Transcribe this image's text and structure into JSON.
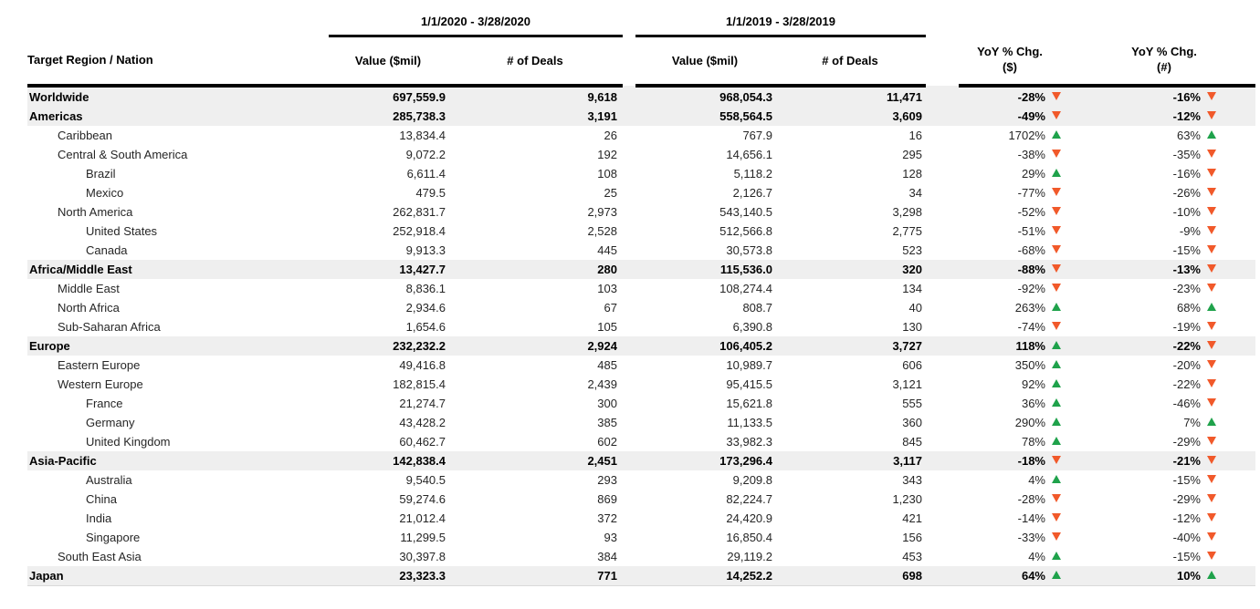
{
  "chart_data": {
    "type": "table",
    "region_header": "Target Region / Nation",
    "period_groups": [
      {
        "label": "1/1/2020 - 3/28/2020",
        "columns": [
          "Value ($mil)",
          "# of Deals"
        ]
      },
      {
        "label": "1/1/2019 - 3/28/2019",
        "columns": [
          "Value ($mil)",
          "# of Deals"
        ]
      }
    ],
    "yoy_headers": [
      {
        "line1": "YoY % Chg.",
        "line2": "($)"
      },
      {
        "line1": "YoY % Chg.",
        "line2": "(#)"
      }
    ],
    "rows": [
      {
        "region": "Worldwide",
        "indent": 0,
        "bold": true,
        "v2020": "697,559.9",
        "d2020": "9,618",
        "v2019": "968,054.3",
        "d2019": "11,471",
        "yoy_value": "-28%",
        "yoy_value_dir": "down",
        "yoy_deals": "-16%",
        "yoy_deals_dir": "down"
      },
      {
        "region": "Americas",
        "indent": 0,
        "bold": true,
        "v2020": "285,738.3",
        "d2020": "3,191",
        "v2019": "558,564.5",
        "d2019": "3,609",
        "yoy_value": "-49%",
        "yoy_value_dir": "down",
        "yoy_deals": "-12%",
        "yoy_deals_dir": "down"
      },
      {
        "region": "Caribbean",
        "indent": 1,
        "bold": false,
        "v2020": "13,834.4",
        "d2020": "26",
        "v2019": "767.9",
        "d2019": "16",
        "yoy_value": "1702%",
        "yoy_value_dir": "up",
        "yoy_deals": "63%",
        "yoy_deals_dir": "up"
      },
      {
        "region": "Central & South America",
        "indent": 1,
        "bold": false,
        "v2020": "9,072.2",
        "d2020": "192",
        "v2019": "14,656.1",
        "d2019": "295",
        "yoy_value": "-38%",
        "yoy_value_dir": "down",
        "yoy_deals": "-35%",
        "yoy_deals_dir": "down"
      },
      {
        "region": "Brazil",
        "indent": 2,
        "bold": false,
        "v2020": "6,611.4",
        "d2020": "108",
        "v2019": "5,118.2",
        "d2019": "128",
        "yoy_value": "29%",
        "yoy_value_dir": "up",
        "yoy_deals": "-16%",
        "yoy_deals_dir": "down"
      },
      {
        "region": "Mexico",
        "indent": 2,
        "bold": false,
        "v2020": "479.5",
        "d2020": "25",
        "v2019": "2,126.7",
        "d2019": "34",
        "yoy_value": "-77%",
        "yoy_value_dir": "down",
        "yoy_deals": "-26%",
        "yoy_deals_dir": "down"
      },
      {
        "region": "North America",
        "indent": 1,
        "bold": false,
        "v2020": "262,831.7",
        "d2020": "2,973",
        "v2019": "543,140.5",
        "d2019": "3,298",
        "yoy_value": "-52%",
        "yoy_value_dir": "down",
        "yoy_deals": "-10%",
        "yoy_deals_dir": "down"
      },
      {
        "region": "United States",
        "indent": 2,
        "bold": false,
        "v2020": "252,918.4",
        "d2020": "2,528",
        "v2019": "512,566.8",
        "d2019": "2,775",
        "yoy_value": "-51%",
        "yoy_value_dir": "down",
        "yoy_deals": "-9%",
        "yoy_deals_dir": "down"
      },
      {
        "region": "Canada",
        "indent": 2,
        "bold": false,
        "v2020": "9,913.3",
        "d2020": "445",
        "v2019": "30,573.8",
        "d2019": "523",
        "yoy_value": "-68%",
        "yoy_value_dir": "down",
        "yoy_deals": "-15%",
        "yoy_deals_dir": "down"
      },
      {
        "region": "Africa/Middle East",
        "indent": 0,
        "bold": true,
        "v2020": "13,427.7",
        "d2020": "280",
        "v2019": "115,536.0",
        "d2019": "320",
        "yoy_value": "-88%",
        "yoy_value_dir": "down",
        "yoy_deals": "-13%",
        "yoy_deals_dir": "down"
      },
      {
        "region": "Middle East",
        "indent": 1,
        "bold": false,
        "v2020": "8,836.1",
        "d2020": "103",
        "v2019": "108,274.4",
        "d2019": "134",
        "yoy_value": "-92%",
        "yoy_value_dir": "down",
        "yoy_deals": "-23%",
        "yoy_deals_dir": "down"
      },
      {
        "region": "North Africa",
        "indent": 1,
        "bold": false,
        "v2020": "2,934.6",
        "d2020": "67",
        "v2019": "808.7",
        "d2019": "40",
        "yoy_value": "263%",
        "yoy_value_dir": "up",
        "yoy_deals": "68%",
        "yoy_deals_dir": "up"
      },
      {
        "region": "Sub-Saharan Africa",
        "indent": 1,
        "bold": false,
        "v2020": "1,654.6",
        "d2020": "105",
        "v2019": "6,390.8",
        "d2019": "130",
        "yoy_value": "-74%",
        "yoy_value_dir": "down",
        "yoy_deals": "-19%",
        "yoy_deals_dir": "down"
      },
      {
        "region": "Europe",
        "indent": 0,
        "bold": true,
        "v2020": "232,232.2",
        "d2020": "2,924",
        "v2019": "106,405.2",
        "d2019": "3,727",
        "yoy_value": "118%",
        "yoy_value_dir": "up",
        "yoy_deals": "-22%",
        "yoy_deals_dir": "down"
      },
      {
        "region": "Eastern Europe",
        "indent": 1,
        "bold": false,
        "v2020": "49,416.8",
        "d2020": "485",
        "v2019": "10,989.7",
        "d2019": "606",
        "yoy_value": "350%",
        "yoy_value_dir": "up",
        "yoy_deals": "-20%",
        "yoy_deals_dir": "down"
      },
      {
        "region": "Western Europe",
        "indent": 1,
        "bold": false,
        "v2020": "182,815.4",
        "d2020": "2,439",
        "v2019": "95,415.5",
        "d2019": "3,121",
        "yoy_value": "92%",
        "yoy_value_dir": "up",
        "yoy_deals": "-22%",
        "yoy_deals_dir": "down"
      },
      {
        "region": "France",
        "indent": 2,
        "bold": false,
        "v2020": "21,274.7",
        "d2020": "300",
        "v2019": "15,621.8",
        "d2019": "555",
        "yoy_value": "36%",
        "yoy_value_dir": "up",
        "yoy_deals": "-46%",
        "yoy_deals_dir": "down"
      },
      {
        "region": "Germany",
        "indent": 2,
        "bold": false,
        "v2020": "43,428.2",
        "d2020": "385",
        "v2019": "11,133.5",
        "d2019": "360",
        "yoy_value": "290%",
        "yoy_value_dir": "up",
        "yoy_deals": "7%",
        "yoy_deals_dir": "up"
      },
      {
        "region": "United Kingdom",
        "indent": 2,
        "bold": false,
        "v2020": "60,462.7",
        "d2020": "602",
        "v2019": "33,982.3",
        "d2019": "845",
        "yoy_value": "78%",
        "yoy_value_dir": "up",
        "yoy_deals": "-29%",
        "yoy_deals_dir": "down"
      },
      {
        "region": "Asia-Pacific",
        "indent": 0,
        "bold": true,
        "v2020": "142,838.4",
        "d2020": "2,451",
        "v2019": "173,296.4",
        "d2019": "3,117",
        "yoy_value": "-18%",
        "yoy_value_dir": "down",
        "yoy_deals": "-21%",
        "yoy_deals_dir": "down"
      },
      {
        "region": "Australia",
        "indent": 2,
        "bold": false,
        "v2020": "9,540.5",
        "d2020": "293",
        "v2019": "9,209.8",
        "d2019": "343",
        "yoy_value": "4%",
        "yoy_value_dir": "up",
        "yoy_deals": "-15%",
        "yoy_deals_dir": "down"
      },
      {
        "region": "China",
        "indent": 2,
        "bold": false,
        "v2020": "59,274.6",
        "d2020": "869",
        "v2019": "82,224.7",
        "d2019": "1,230",
        "yoy_value": "-28%",
        "yoy_value_dir": "down",
        "yoy_deals": "-29%",
        "yoy_deals_dir": "down"
      },
      {
        "region": "India",
        "indent": 2,
        "bold": false,
        "v2020": "21,012.4",
        "d2020": "372",
        "v2019": "24,420.9",
        "d2019": "421",
        "yoy_value": "-14%",
        "yoy_value_dir": "down",
        "yoy_deals": "-12%",
        "yoy_deals_dir": "down"
      },
      {
        "region": "Singapore",
        "indent": 2,
        "bold": false,
        "v2020": "11,299.5",
        "d2020": "93",
        "v2019": "16,850.4",
        "d2019": "156",
        "yoy_value": "-33%",
        "yoy_value_dir": "down",
        "yoy_deals": "-40%",
        "yoy_deals_dir": "down"
      },
      {
        "region": "South East Asia",
        "indent": 1,
        "bold": false,
        "v2020": "30,397.8",
        "d2020": "384",
        "v2019": "29,119.2",
        "d2019": "453",
        "yoy_value": "4%",
        "yoy_value_dir": "up",
        "yoy_deals": "-15%",
        "yoy_deals_dir": "down"
      },
      {
        "region": "Japan",
        "indent": 0,
        "bold": true,
        "v2020": "23,323.3",
        "d2020": "771",
        "v2019": "14,252.2",
        "d2019": "698",
        "yoy_value": "64%",
        "yoy_value_dir": "up",
        "yoy_deals": "10%",
        "yoy_deals_dir": "up"
      }
    ]
  },
  "colors": {
    "up_triangle": "#1FA24B",
    "down_triangle": "#F1592A",
    "shaded_row": "#EFEFEF",
    "header_line": "#000000"
  }
}
